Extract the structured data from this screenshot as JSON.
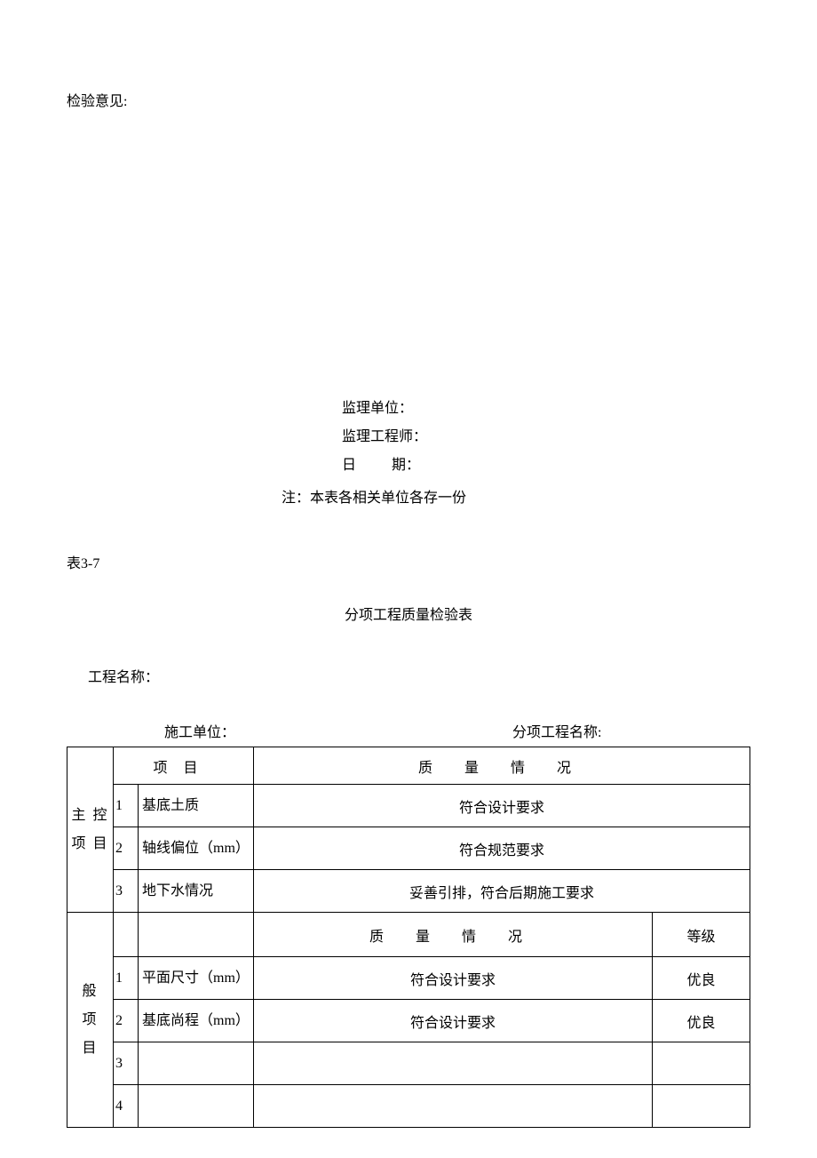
{
  "top": {
    "inspection_opinion": "检验意见:"
  },
  "signature": {
    "supervisor_unit": "监理单位：",
    "supervisor_engineer": "监理工程师：",
    "date": "日          期：",
    "note": "注：本表各相关单位各存一份"
  },
  "table_meta": {
    "number": "表3-7",
    "title": "分项工程质量检验表",
    "project_name_label": "工程名称：",
    "construction_unit_label": "施工单位：",
    "sub_project_label": "分项工程名称:"
  },
  "headers": {
    "item": "项目",
    "quality": "质  量   情  况",
    "quality2": "质   量   情  况",
    "grade": "等级"
  },
  "categories": {
    "main": "主 控项 目",
    "general_1": "般",
    "general_2": "项",
    "general_3": "目"
  },
  "main_rows": [
    {
      "num": "1",
      "item": "基底土质",
      "quality": "符合设计要求"
    },
    {
      "num": "2",
      "item": "轴线偏位（mm）",
      "quality": "符合规范要求"
    },
    {
      "num": "3",
      "item": "地下水情况",
      "quality": "妥善引排，符合后期施工要求"
    }
  ],
  "general_rows": [
    {
      "num": "1",
      "item": "平面尺寸（mm）",
      "quality": "符合设计要求",
      "grade": "优良"
    },
    {
      "num": "2",
      "item": "基底尚程（mm）",
      "quality": "符合设计要求",
      "grade": "优良"
    },
    {
      "num": "3",
      "item": "",
      "quality": "",
      "grade": ""
    },
    {
      "num": "4",
      "item": "",
      "quality": "",
      "grade": ""
    }
  ]
}
